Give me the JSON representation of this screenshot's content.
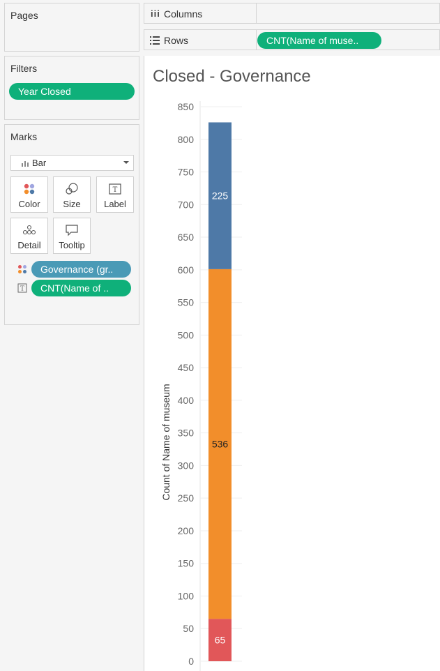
{
  "pages": {
    "title": "Pages"
  },
  "filters": {
    "title": "Filters",
    "pills": [
      "Year Closed"
    ]
  },
  "marks": {
    "title": "Marks",
    "mark_type": "Bar",
    "buttons": [
      "Color",
      "Size",
      "Label",
      "Detail",
      "Tooltip"
    ],
    "fields": [
      {
        "label": "Governance (gr..",
        "role": "color"
      },
      {
        "label": "CNT(Name of ..",
        "role": "label"
      }
    ]
  },
  "shelves": {
    "columns_label": "Columns",
    "rows_label": "Rows",
    "rows_pill": "CNT(Name of muse.."
  },
  "colors": {
    "green_pill": "#0fb07a",
    "blue_pill": "#4a9ab6",
    "seg_red": "#e15759",
    "seg_orange": "#f28e2b",
    "seg_blue": "#4e79a7"
  },
  "chart_data": {
    "type": "bar",
    "title": "Closed - Governance",
    "ylabel": "Count of Name of museum",
    "ylim": [
      0,
      850
    ],
    "yticks": [
      0,
      50,
      100,
      150,
      200,
      250,
      300,
      350,
      400,
      450,
      500,
      550,
      600,
      650,
      700,
      750,
      800,
      850
    ],
    "stacked": true,
    "series": [
      {
        "values": [
          65
        ],
        "color": "#e15759",
        "label": "65"
      },
      {
        "values": [
          536
        ],
        "color": "#f28e2b",
        "label": "536"
      },
      {
        "values": [
          225
        ],
        "color": "#4e79a7",
        "label": "225"
      }
    ]
  }
}
